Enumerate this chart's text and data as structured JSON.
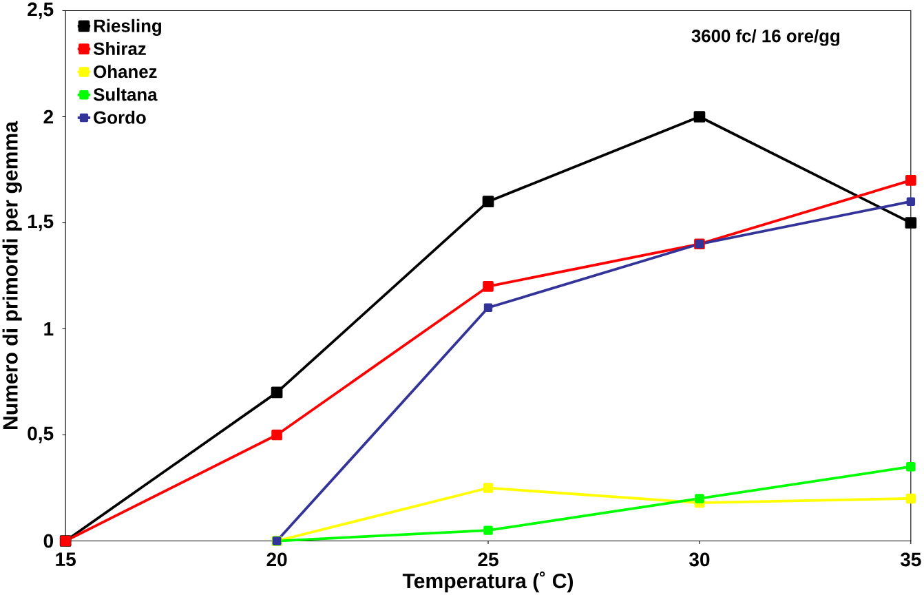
{
  "chart_data": {
    "type": "line",
    "xlabel": "Temperatura (˚ C)",
    "ylabel": "Numero di primordi per gemma",
    "x": [
      15,
      20,
      25,
      30,
      35
    ],
    "xlim": [
      15,
      35
    ],
    "ylim": [
      0,
      2.5
    ],
    "xticks": [
      15,
      20,
      25,
      30,
      35
    ],
    "yticks": [
      0,
      {
        "value": 0.5,
        "label": "0,5"
      },
      1,
      {
        "value": 1.5,
        "label": "1,5"
      },
      2,
      {
        "value": 2.5,
        "label": "2,5"
      }
    ],
    "series": [
      {
        "name": "Riesling",
        "color": "#000000",
        "values": [
          0,
          0.7,
          1.6,
          2.0,
          1.5
        ]
      },
      {
        "name": "Shiraz",
        "color": "#ff0000",
        "values": [
          0,
          0.5,
          1.2,
          1.4,
          1.7
        ]
      },
      {
        "name": "Ohanez",
        "color": "#ffff00",
        "values": [
          null,
          0,
          0.25,
          0.18,
          0.2
        ]
      },
      {
        "name": "Sultana",
        "color": "#00ff00",
        "values": [
          null,
          0,
          0.05,
          0.2,
          0.35
        ]
      },
      {
        "name": "Gordo",
        "color": "#333399",
        "values": [
          null,
          0,
          1.1,
          1.4,
          1.6
        ]
      }
    ],
    "marker": "square",
    "legend": "top left",
    "grid": false,
    "annotations": [
      "3600 fc/ 16 ore/gg"
    ]
  }
}
